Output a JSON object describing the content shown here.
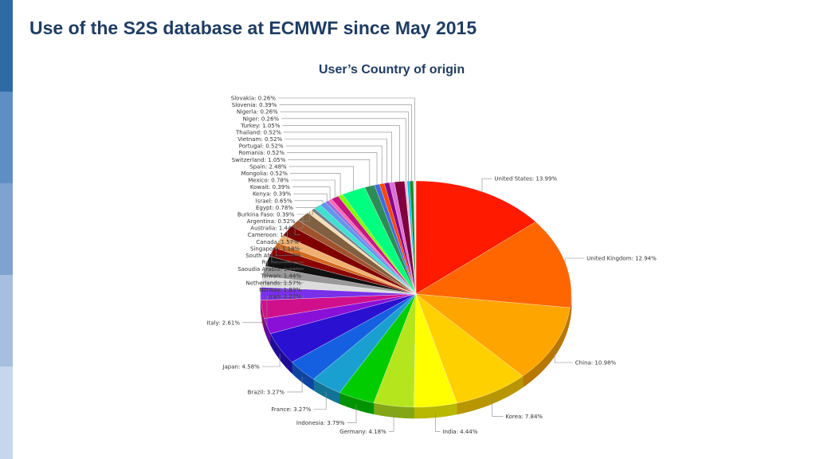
{
  "slide": {
    "title": "Use of the S2S database at ECMWF since May 2015",
    "subtitle": "User’s Country of origin"
  },
  "colors": {
    "title": "#1f3d63",
    "sidebar": [
      "#2e6aa3",
      "#5e8ec4",
      "#7ea3d1",
      "#a6bfe0",
      "#c6d6ec"
    ]
  },
  "chart_data": {
    "type": "pie",
    "title": "User’s Country of origin",
    "unit": "%",
    "slices": [
      {
        "label": "United States: 13.99%",
        "value": 13.99,
        "color": "#ff1a00"
      },
      {
        "label": "United Kingdom: 12.94%",
        "value": 12.94,
        "color": "#ff6600"
      },
      {
        "label": "China: 10.98%",
        "value": 10.98,
        "color": "#ffa500"
      },
      {
        "label": "Korea: 7.84%",
        "value": 7.84,
        "color": "#ffd000"
      },
      {
        "label": "India: 4.44%",
        "value": 4.44,
        "color": "#ffff00"
      },
      {
        "label": "Germany: 4.18%",
        "value": 4.18,
        "color": "#b5e61d"
      },
      {
        "label": "Indonesia: 3.79%",
        "value": 3.79,
        "color": "#00cc00"
      },
      {
        "label": "France: 3.27%",
        "value": 3.27,
        "color": "#1aa0d0"
      },
      {
        "label": "Brazil: 3.27%",
        "value": 3.27,
        "color": "#1560e0"
      },
      {
        "label": "Japan: 4.58%",
        "value": 4.58,
        "color": "#2a10d0"
      },
      {
        "label": "Iran: 2.22%",
        "value": 2.22,
        "color": "#8a10d8"
      },
      {
        "label": "Italy: 2.61%",
        "value": 2.61,
        "color": "#d0108a"
      },
      {
        "label": "Norway: 1.83%",
        "value": 1.83,
        "color": "#7a30e8"
      },
      {
        "label": "Netherlands: 1.57%",
        "value": 1.57,
        "color": "#dcdcdc"
      },
      {
        "label": "Taiwan: 1.44%",
        "value": 1.44,
        "color": "#999999"
      },
      {
        "label": "Saoudia Arabia: 1.44%",
        "value": 1.44,
        "color": "#111111"
      },
      {
        "label": "Russia: 1.31%",
        "value": 1.31,
        "color": "#8b0000"
      },
      {
        "label": "South Africa: 0.78%",
        "value": 0.78,
        "color": "#d2691e"
      },
      {
        "label": "Singapore: 1.18%",
        "value": 1.18,
        "color": "#f0b070"
      },
      {
        "label": "Canada: 1.57%",
        "value": 1.57,
        "color": "#800000"
      },
      {
        "label": "Cameroon: 1.05%",
        "value": 1.05,
        "color": "#a0522d"
      },
      {
        "label": "Australia: 1.44%",
        "value": 1.44,
        "color": "#806040"
      },
      {
        "label": "Argentina: 0.52%",
        "value": 0.52,
        "color": "#f5deb3"
      },
      {
        "label": "Burkina Faso: 0.39%",
        "value": 0.39,
        "color": "#708090"
      },
      {
        "label": "Egypt: 0.78%",
        "value": 0.78,
        "color": "#40e0d0"
      },
      {
        "label": "Israel: 0.65%",
        "value": 0.65,
        "color": "#6495ed"
      },
      {
        "label": "Kenya: 0.39%",
        "value": 0.39,
        "color": "#9370db"
      },
      {
        "label": "Kowait: 0.39%",
        "value": 0.39,
        "color": "#ff69b4"
      },
      {
        "label": "Mexico: 0.78%",
        "value": 0.78,
        "color": "#c71585"
      },
      {
        "label": "Mongolia: 0.52%",
        "value": 0.52,
        "color": "#7fff00"
      },
      {
        "label": "Spain: 2.48%",
        "value": 2.48,
        "color": "#00ff7f"
      },
      {
        "label": "Switzerland: 1.05%",
        "value": 1.05,
        "color": "#2e8b57"
      },
      {
        "label": "Romania: 0.52%",
        "value": 0.52,
        "color": "#4169e1"
      },
      {
        "label": "Portugal: 0.52%",
        "value": 0.52,
        "color": "#ff4500"
      },
      {
        "label": "Vietnam: 0.52%",
        "value": 0.52,
        "color": "#8b008b"
      },
      {
        "label": "Thailand: 0.52%",
        "value": 0.52,
        "color": "#da70d6"
      },
      {
        "label": "Turkey: 1.05%",
        "value": 1.05,
        "color": "#800040"
      },
      {
        "label": "Niger: 0.26%",
        "value": 0.26,
        "color": "#ffc0cb"
      },
      {
        "label": "Nigeria: 0.26%",
        "value": 0.26,
        "color": "#00bfff"
      },
      {
        "label": "Slovenia: 0.39%",
        "value": 0.39,
        "color": "#228b22"
      },
      {
        "label": "Slovakia: 0.26%",
        "value": 0.26,
        "color": "#e0e0ff"
      }
    ]
  }
}
